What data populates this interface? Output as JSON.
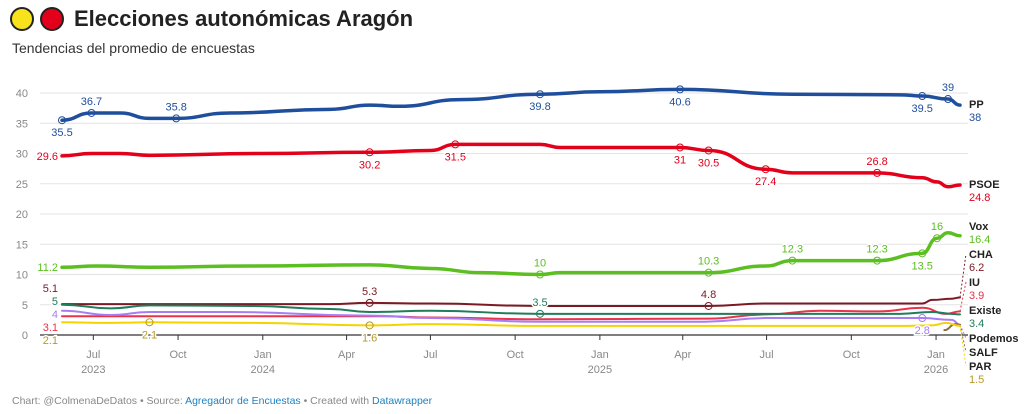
{
  "header": {
    "title": "Elecciones autonómicas Aragón",
    "subtitle": "Tendencias del promedio de encuestas",
    "icon_colors": [
      "#f7e21b",
      "#e3001b"
    ]
  },
  "footer": {
    "chart_prefix": "Chart: @ColmenaDeDatos • Source: ",
    "source_link": "Agregador de Encuestas",
    "created_prefix": " • Created with ",
    "created_link": "Datawrapper"
  },
  "chart_data": {
    "type": "line",
    "title": "",
    "xlabel": "",
    "ylabel": "",
    "ylim": [
      0,
      40
    ],
    "grid": true,
    "xlim": [
      "2023-05-28",
      "2026-01-27"
    ],
    "y_ticks": [
      0,
      5,
      10,
      15,
      20,
      25,
      30,
      35,
      40
    ],
    "x_ticks": [
      {
        "date": "2023-07-01",
        "label": "Jul",
        "year": "2023"
      },
      {
        "date": "2023-10-01",
        "label": "Oct"
      },
      {
        "date": "2024-01-01",
        "label": "Jan",
        "year": "2024"
      },
      {
        "date": "2024-04-01",
        "label": "Apr"
      },
      {
        "date": "2024-07-01",
        "label": "Jul"
      },
      {
        "date": "2024-10-01",
        "label": "Oct"
      },
      {
        "date": "2025-01-01",
        "label": "Jan",
        "year": "2025"
      },
      {
        "date": "2025-04-01",
        "label": "Apr"
      },
      {
        "date": "2025-07-01",
        "label": "Jul"
      },
      {
        "date": "2025-10-01",
        "label": "Oct"
      },
      {
        "date": "2026-01-01",
        "label": "Jan",
        "year": "2026"
      }
    ],
    "series": [
      {
        "name": "PP",
        "color": "#1f4e9c",
        "end_label": "38",
        "points": [
          [
            "2023-05-28",
            35.5
          ],
          [
            "2023-06-29",
            36.7
          ],
          [
            "2023-07-30",
            36.7
          ],
          [
            "2023-08-31",
            35.8
          ],
          [
            "2023-09-29",
            35.8
          ],
          [
            "2023-11-26",
            36.7
          ],
          [
            "2024-03-14",
            37.3
          ],
          [
            "2024-04-26",
            38
          ],
          [
            "2024-05-29",
            37.8
          ],
          [
            "2024-08-02",
            38.9
          ],
          [
            "2024-10-28",
            39.8
          ],
          [
            "2025-01-01",
            40.2
          ],
          [
            "2025-03-29",
            40.6
          ],
          [
            "2025-07-29",
            39.8
          ],
          [
            "2025-11-23",
            39.7
          ],
          [
            "2025-12-17",
            39.5
          ],
          [
            "2026-01-14",
            39
          ],
          [
            "2026-01-27",
            38
          ]
        ]
      },
      {
        "name": "PSOE",
        "color": "#e3001b",
        "end_label": "24.8",
        "points": [
          [
            "2023-05-28",
            29.6
          ],
          [
            "2023-06-29",
            30
          ],
          [
            "2023-07-30",
            30
          ],
          [
            "2023-08-31",
            29.7
          ],
          [
            "2023-12-29",
            30
          ],
          [
            "2024-04-26",
            30.2
          ],
          [
            "2024-07-01",
            30.5
          ],
          [
            "2024-07-28",
            31.5
          ],
          [
            "2024-10-28",
            31.5
          ],
          [
            "2024-11-19",
            31
          ],
          [
            "2025-03-29",
            31
          ],
          [
            "2025-04-29",
            30.5
          ],
          [
            "2025-06-30",
            27.4
          ],
          [
            "2025-07-29",
            26.8
          ],
          [
            "2025-10-29",
            26.8
          ],
          [
            "2025-12-17",
            26
          ],
          [
            "2026-01-02",
            25.3
          ],
          [
            "2026-01-14",
            24.5
          ],
          [
            "2026-01-27",
            24.8
          ]
        ]
      },
      {
        "name": "Vox",
        "color": "#5bbf21",
        "end_label": "16.4",
        "points": [
          [
            "2023-05-28",
            11.2
          ],
          [
            "2023-07-05",
            11.4
          ],
          [
            "2023-08-31",
            11.2
          ],
          [
            "2023-12-20",
            11.4
          ],
          [
            "2024-04-26",
            11.6
          ],
          [
            "2024-07-01",
            11
          ],
          [
            "2024-08-25",
            10.3
          ],
          [
            "2024-10-28",
            10
          ],
          [
            "2024-11-19",
            10.3
          ],
          [
            "2025-04-29",
            10.3
          ],
          [
            "2025-06-30",
            11.4
          ],
          [
            "2025-07-29",
            12.3
          ],
          [
            "2025-10-29",
            12.3
          ],
          [
            "2025-12-17",
            13.5
          ],
          [
            "2026-01-02",
            16
          ],
          [
            "2026-01-14",
            16.9
          ],
          [
            "2026-01-27",
            16.4
          ]
        ]
      },
      {
        "name": "CHA",
        "color": "#7b1a25",
        "end_label": "6.2",
        "points": [
          [
            "2023-05-28",
            5.1
          ],
          [
            "2024-03-14",
            5.1
          ],
          [
            "2024-04-26",
            5.3
          ],
          [
            "2024-07-01",
            5.2
          ],
          [
            "2024-10-28",
            4.8
          ],
          [
            "2025-04-29",
            4.8
          ],
          [
            "2025-06-30",
            5.2
          ],
          [
            "2025-12-17",
            5.2
          ],
          [
            "2025-12-28",
            5.8
          ],
          [
            "2026-01-18",
            6
          ],
          [
            "2026-01-27",
            6.2
          ]
        ]
      },
      {
        "name": "IU",
        "color": "#e8334a",
        "end_label": "3.9",
        "points": [
          [
            "2023-05-28",
            3.1
          ],
          [
            "2024-05-10",
            3.1
          ],
          [
            "2024-07-01",
            2.9
          ],
          [
            "2024-10-28",
            2.6
          ],
          [
            "2025-04-29",
            2.7
          ],
          [
            "2025-06-30",
            3.4
          ],
          [
            "2025-08-28",
            4
          ],
          [
            "2025-10-30",
            3.9
          ],
          [
            "2025-12-17",
            4.5
          ],
          [
            "2026-01-12",
            3.5
          ],
          [
            "2026-01-27",
            3.9
          ]
        ]
      },
      {
        "name": "Existe",
        "color": "#1e7d5a",
        "end_label": "3.4",
        "points": [
          [
            "2023-05-28",
            5
          ],
          [
            "2023-07-20",
            4.4
          ],
          [
            "2023-08-31",
            4.9
          ],
          [
            "2023-12-20",
            4.8
          ],
          [
            "2024-03-14",
            4.3
          ],
          [
            "2024-04-26",
            3.8
          ],
          [
            "2024-07-01",
            4
          ],
          [
            "2024-10-28",
            3.5
          ],
          [
            "2025-11-23",
            3.5
          ],
          [
            "2025-12-28",
            3.8
          ],
          [
            "2026-01-18",
            3.5
          ],
          [
            "2026-01-27",
            3.4
          ]
        ]
      },
      {
        "name": "Podemos",
        "color": "#a97cf4",
        "end_label": "",
        "points": [
          [
            "2023-05-28",
            4
          ],
          [
            "2023-07-20",
            3.3
          ],
          [
            "2023-08-31",
            3.8
          ],
          [
            "2023-11-26",
            3.8
          ],
          [
            "2024-04-26",
            3.2
          ],
          [
            "2024-07-01",
            2.8
          ],
          [
            "2024-10-28",
            2.2
          ],
          [
            "2025-04-25",
            2.2
          ],
          [
            "2025-06-30",
            2.8
          ],
          [
            "2025-12-17",
            2.8
          ],
          [
            "2026-01-18",
            2.5
          ],
          [
            "2026-01-27",
            1.7
          ]
        ]
      },
      {
        "name": "SALF",
        "color": "#8c6d3f",
        "end_label": "",
        "points": [
          [
            "2026-01-10",
            0.8
          ],
          [
            "2026-01-22",
            1.8
          ],
          [
            "2026-01-27",
            1.7
          ]
        ]
      },
      {
        "name": "PAR",
        "color": "#f5d300",
        "end_label": "1.5",
        "label_color": "#b59a2b",
        "points": [
          [
            "2023-05-28",
            2.1
          ],
          [
            "2023-07-20",
            2
          ],
          [
            "2023-08-31",
            2.1
          ],
          [
            "2023-12-20",
            2
          ],
          [
            "2024-04-26",
            1.6
          ],
          [
            "2024-07-01",
            1.8
          ],
          [
            "2024-10-28",
            1.5
          ],
          [
            "2025-11-23",
            1.5
          ],
          [
            "2025-12-28",
            1.6
          ],
          [
            "2026-01-12",
            2
          ],
          [
            "2026-01-27",
            1.5
          ]
        ]
      }
    ],
    "annotations": [
      {
        "series": "PP",
        "date": "2023-05-28",
        "text": "35.5",
        "pos": "below"
      },
      {
        "series": "PP",
        "date": "2023-06-29",
        "text": "36.7",
        "pos": "above"
      },
      {
        "series": "PP",
        "date": "2023-09-29",
        "text": "35.8",
        "pos": "above"
      },
      {
        "series": "PP",
        "date": "2024-10-28",
        "text": "39.8",
        "pos": "below"
      },
      {
        "series": "PP",
        "date": "2025-03-29",
        "text": "40.6",
        "pos": "below"
      },
      {
        "series": "PP",
        "date": "2025-12-17",
        "text": "39.5",
        "pos": "below"
      },
      {
        "series": "PP",
        "date": "2026-01-14",
        "text": "39",
        "pos": "above"
      },
      {
        "series": "PSOE",
        "date": "2023-05-28",
        "text": "29.6",
        "pos": "left"
      },
      {
        "series": "PSOE",
        "date": "2024-04-26",
        "text": "30.2",
        "pos": "below"
      },
      {
        "series": "PSOE",
        "date": "2024-07-28",
        "text": "31.5",
        "pos": "below"
      },
      {
        "series": "PSOE",
        "date": "2025-03-29",
        "text": "31",
        "pos": "below"
      },
      {
        "series": "PSOE",
        "date": "2025-04-29",
        "text": "30.5",
        "pos": "below"
      },
      {
        "series": "PSOE",
        "date": "2025-06-30",
        "text": "27.4",
        "pos": "below"
      },
      {
        "series": "PSOE",
        "date": "2025-10-29",
        "text": "26.8",
        "pos": "above"
      },
      {
        "series": "Vox",
        "date": "2023-05-28",
        "text": "11.2",
        "pos": "left"
      },
      {
        "series": "Vox",
        "date": "2024-10-28",
        "text": "10",
        "pos": "above"
      },
      {
        "series": "Vox",
        "date": "2025-04-29",
        "text": "10.3",
        "pos": "above"
      },
      {
        "series": "Vox",
        "date": "2025-07-29",
        "text": "12.3",
        "pos": "above"
      },
      {
        "series": "Vox",
        "date": "2025-10-29",
        "text": "12.3",
        "pos": "above"
      },
      {
        "series": "Vox",
        "date": "2025-12-17",
        "text": "13.5",
        "pos": "below"
      },
      {
        "series": "Vox",
        "date": "2026-01-02",
        "text": "16",
        "pos": "above"
      },
      {
        "series": "CHA",
        "date": "2023-05-28",
        "text": "5.1",
        "pos": "leftabove"
      },
      {
        "series": "CHA",
        "date": "2024-04-26",
        "text": "5.3",
        "pos": "above"
      },
      {
        "series": "CHA",
        "date": "2025-04-29",
        "text": "4.8",
        "pos": "above"
      },
      {
        "series": "Existe",
        "date": "2023-05-28",
        "text": "5",
        "pos": "leftabove"
      },
      {
        "series": "Existe",
        "date": "2024-10-28",
        "text": "3.5",
        "pos": "above"
      },
      {
        "series": "Podemos",
        "date": "2023-05-28",
        "text": "4",
        "pos": "left"
      },
      {
        "series": "Podemos",
        "date": "2025-12-17",
        "text": "2.8",
        "pos": "below"
      },
      {
        "series": "IU",
        "date": "2023-05-28",
        "text": "3.1",
        "pos": "leftbelow"
      },
      {
        "series": "PAR",
        "date": "2023-05-28",
        "text": "2.1",
        "pos": "leftbelow"
      },
      {
        "series": "PAR",
        "date": "2023-08-31",
        "text": "2.1",
        "pos": "below"
      },
      {
        "series": "PAR",
        "date": "2024-04-26",
        "text": "1.6",
        "pos": "below"
      }
    ]
  }
}
